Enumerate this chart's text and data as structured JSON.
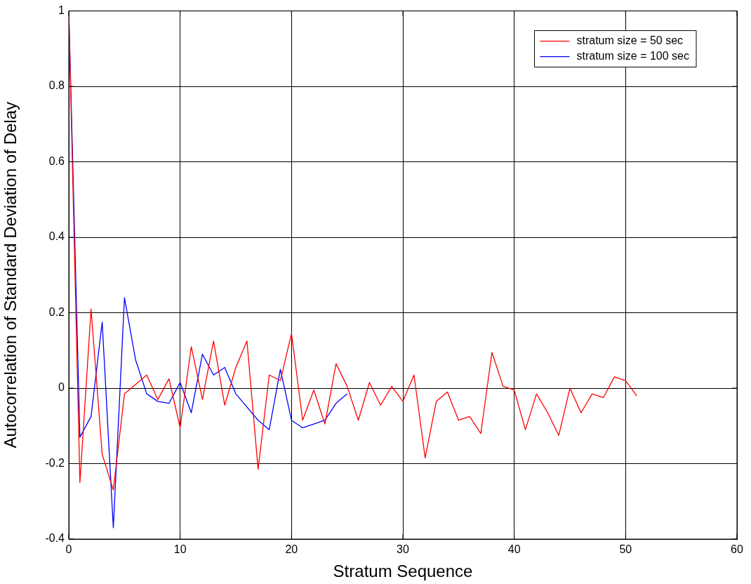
{
  "chart_data": {
    "type": "line",
    "xlabel": "Stratum Sequence",
    "ylabel": "Autocorrelation of Standard Deviation of Delay",
    "xlim": [
      0,
      60
    ],
    "xticks": [
      0,
      10,
      20,
      30,
      40,
      50,
      60
    ],
    "ylim": [
      -0.4,
      1
    ],
    "yticks": [
      -0.4,
      -0.2,
      0,
      0.2,
      0.4,
      0.6,
      0.8,
      1
    ],
    "grid": true,
    "legend": "top right",
    "marker": "none",
    "line_style": "solid",
    "series": [
      {
        "name": "stratum size = 50 sec",
        "color": "#ff0000",
        "x": [
          0,
          1,
          2,
          3,
          4,
          5,
          6,
          7,
          8,
          9,
          10,
          11,
          12,
          13,
          14,
          15,
          16,
          17,
          18,
          19,
          20,
          21,
          22,
          23,
          24,
          25,
          26,
          27,
          28,
          29,
          30,
          31,
          32,
          33,
          34,
          35,
          36,
          37,
          38,
          39,
          40,
          41,
          42,
          43,
          44,
          45,
          46,
          47,
          48,
          49,
          50,
          51
        ],
        "values": [
          1,
          -0.25,
          0.21,
          -0.175,
          -0.27,
          -0.015,
          0.01,
          0.035,
          -0.03,
          0.025,
          -0.105,
          0.11,
          -0.03,
          0.125,
          -0.045,
          0.055,
          0.125,
          -0.215,
          0.035,
          0.02,
          0.145,
          -0.085,
          -0.005,
          -0.095,
          0.065,
          0.005,
          -0.085,
          0.015,
          -0.045,
          0.005,
          -0.035,
          0.035,
          -0.185,
          -0.035,
          -0.01,
          -0.085,
          -0.075,
          -0.12,
          0.095,
          0.005,
          -0.005,
          -0.11,
          -0.015,
          -0.065,
          -0.125,
          0,
          -0.065,
          -0.015,
          -0.025,
          0.03,
          0.02,
          -0.02
        ]
      },
      {
        "name": "stratum size = 100 sec",
        "color": "#0000ff",
        "x": [
          0,
          1,
          2,
          3,
          4,
          5,
          6,
          7,
          8,
          9,
          10,
          11,
          12,
          13,
          14,
          15,
          16,
          17,
          18,
          19,
          20,
          21,
          22,
          23,
          24,
          25
        ],
        "values": [
          1,
          -0.13,
          -0.075,
          0.175,
          -0.37,
          0.24,
          0.075,
          -0.015,
          -0.035,
          -0.04,
          0.015,
          -0.065,
          0.09,
          0.035,
          0.055,
          -0.015,
          -0.05,
          -0.085,
          -0.11,
          0.05,
          -0.085,
          -0.105,
          -0.095,
          -0.085,
          -0.04,
          -0.015
        ]
      }
    ]
  }
}
